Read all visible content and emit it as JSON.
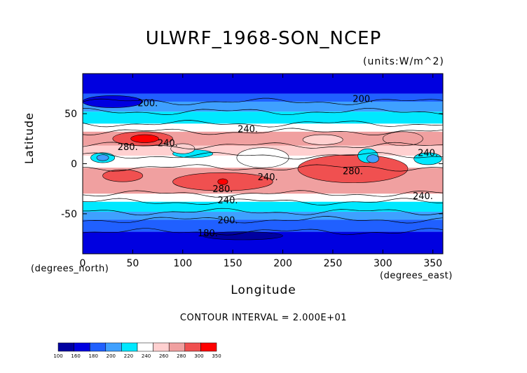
{
  "chart_data": {
    "type": "contour",
    "title": "ULWRF_1968-SON_NCEP",
    "units": "(units:W/m^2)",
    "xlabel": "Longitude",
    "ylabel": "Latitude",
    "x_unit": "(degrees_east)",
    "y_unit": "(degrees_north)",
    "xlim": [
      0,
      360
    ],
    "ylim": [
      -90,
      90
    ],
    "x_ticks": [
      "0",
      "50",
      "100",
      "150",
      "200",
      "250",
      "300",
      "350"
    ],
    "y_ticks": [
      "-50",
      "0",
      "50"
    ],
    "contour_interval": "CONTOUR INTERVAL = 2.000E+01",
    "contour_labels": [
      "200.",
      "200.",
      "240.",
      "280.",
      "240.",
      "280.",
      "280.",
      "240.",
      "240.",
      "240.",
      "240.",
      "200.",
      "180."
    ],
    "colorbar": {
      "levels": [
        "100",
        "160",
        "180",
        "200",
        "220",
        "240",
        "260",
        "280",
        "300",
        "350"
      ],
      "colors": [
        "#0000a0",
        "#0000e0",
        "#2060ff",
        "#3fa0ff",
        "#00e8ff",
        "#ffffff",
        "#ffd0d0",
        "#f0a0a0",
        "#f05050",
        "#ff0000"
      ]
    }
  }
}
